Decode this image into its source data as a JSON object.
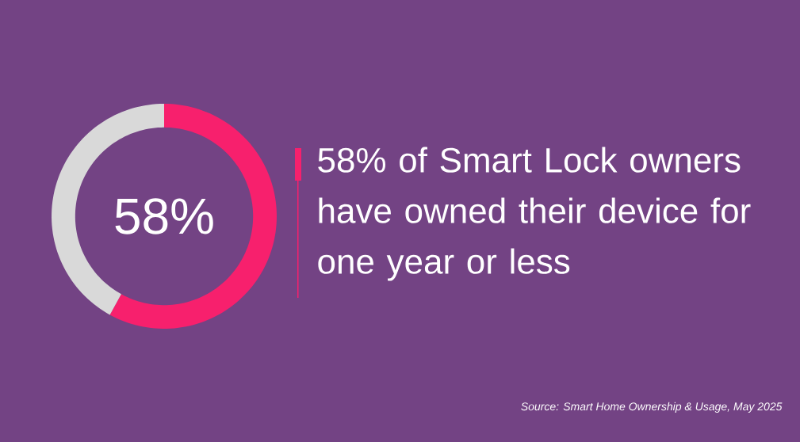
{
  "chart_data": {
    "type": "donut",
    "title": "58% of Smart Lock owners have owned their device for one year or less",
    "categories": [
      null,
      null
    ],
    "values": [
      58,
      42
    ],
    "colors": [
      "#f7206d",
      "#d9d9d9"
    ],
    "value_labels": [
      "58%",
      null
    ],
    "annotations": [
      "Source: Smart Home Ownership & Usage, May 2025"
    ]
  }
}
